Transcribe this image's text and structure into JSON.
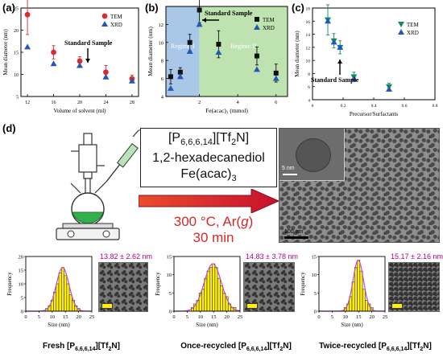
{
  "panels": {
    "a": "(a)",
    "b": "(b)",
    "c": "(c)",
    "d": "(d)"
  },
  "colors": {
    "tem": "#e0282d",
    "xrd": "#2358b8",
    "regime1": "#a9c8e8",
    "regime2": "#bfe3b0",
    "arrow": "#d62828",
    "hist_bar": "#ffef00",
    "fit": "#c24bd0",
    "c_tem": "#0f8a64",
    "c_xrd": "#2358b8"
  },
  "chart_data": [
    {
      "type": "scatter",
      "panel": "a",
      "xlabel": "Volume of solvent (ml)",
      "ylabel": "Mean diameter (nm)",
      "xlim": [
        11,
        29
      ],
      "ylim": [
        5,
        25
      ],
      "xticks": [
        12,
        16,
        20,
        24,
        28
      ],
      "yticks": [
        5,
        10,
        15,
        20,
        25
      ],
      "legend": {
        "position": "top-right",
        "entries": [
          "TEM",
          "XRD"
        ]
      },
      "annotation": "Standard Sample",
      "series": [
        {
          "name": "TEM",
          "marker": "circle",
          "x": [
            12,
            16,
            20,
            24,
            28
          ],
          "y": [
            23.5,
            15.0,
            13.0,
            10.5,
            9.0
          ],
          "err": [
            4.5,
            1.5,
            1.0,
            1.5,
            0.8
          ]
        },
        {
          "name": "XRD",
          "marker": "triangle",
          "x": [
            12,
            16,
            20,
            24,
            28
          ],
          "y": [
            16.2,
            12.4,
            12.0,
            9.4,
            8.5
          ],
          "err": [
            0,
            0,
            0,
            0,
            0
          ]
        }
      ]
    },
    {
      "type": "scatter",
      "panel": "b",
      "xlabel": "Fe(acac)₃ (mmol)",
      "ylabel": "Mean diameter (nm)",
      "xlim": [
        0.25,
        6.6
      ],
      "ylim": [
        4,
        14
      ],
      "xticks": [
        2,
        4,
        6
      ],
      "yticks": [
        4,
        6,
        8,
        10,
        12
      ],
      "legend": {
        "position": "top-right",
        "entries": [
          "TEM",
          "XRD"
        ]
      },
      "regions": [
        {
          "label": "Regime I",
          "from": 0.25,
          "to": 2
        },
        {
          "label": "Regime II",
          "from": 2,
          "to": 6.6
        }
      ],
      "annotation": "Standard Sample",
      "series": [
        {
          "name": "TEM",
          "marker": "square",
          "x": [
            0.5,
            1.0,
            1.5,
            2.0,
            3.0,
            5.0,
            6.0
          ],
          "y": [
            6.2,
            6.7,
            10.0,
            13.6,
            9.8,
            8.5,
            6.6
          ],
          "err": [
            0.8,
            0.5,
            0.9,
            1.4,
            1.5,
            1.0,
            1.0
          ]
        },
        {
          "name": "XRD",
          "marker": "triangle",
          "x": [
            0.5,
            1.0,
            1.5,
            2.0,
            3.0,
            5.0,
            6.0
          ],
          "y": [
            4.9,
            6.2,
            9.0,
            12.0,
            8.9,
            7.0,
            6.0
          ],
          "err": [
            0,
            0,
            0,
            0,
            0,
            0,
            0
          ]
        }
      ]
    },
    {
      "type": "scatter",
      "panel": "c",
      "xlabel": "Precursor/Surfactants",
      "ylabel": "Mean diameter (nm)",
      "xlim": [
        0,
        0.8
      ],
      "ylim": [
        4,
        18
      ],
      "xticks": [
        0.0,
        0.2,
        0.4,
        0.6,
        0.8
      ],
      "yticks": [
        4,
        6,
        8,
        10,
        12,
        14,
        16,
        18
      ],
      "legend": {
        "position": "top-right",
        "entries": [
          "TEM",
          "XRD"
        ]
      },
      "annotation": "Standard Sample",
      "series": [
        {
          "name": "TEM",
          "marker": "triangle-down",
          "x": [
            0.1,
            0.14,
            0.18,
            0.27,
            0.5
          ],
          "y": [
            16.2,
            13.0,
            12.0,
            7.5,
            6.0
          ],
          "err": [
            2.3,
            1.1,
            1.0,
            0.7,
            0.5
          ]
        },
        {
          "name": "XRD",
          "marker": "triangle",
          "x": [
            0.1,
            0.14,
            0.18,
            0.27,
            0.5
          ],
          "y": [
            16.0,
            12.8,
            12.0,
            7.2,
            5.6
          ],
          "err": [
            0,
            0,
            0,
            0,
            0
          ]
        }
      ]
    },
    {
      "type": "bar",
      "panel": "d1",
      "xlabel": "Size (nm)",
      "ylabel": "Frequency",
      "xlim": [
        0,
        25
      ],
      "ylim": [
        0,
        20
      ],
      "xticks": [
        0,
        5,
        10,
        15,
        20,
        25
      ],
      "yticks": [
        0,
        5,
        10,
        15,
        20
      ],
      "fit_label": "13.82 ± 2.62 nm",
      "caption": "Fresh [P6,6,6,14][Tf2N]",
      "categories": [
        8,
        9,
        10,
        11,
        12,
        13,
        14,
        15,
        16,
        17,
        18,
        19,
        20
      ],
      "values": [
        1,
        2,
        4,
        7,
        10,
        14,
        16,
        13,
        10,
        6,
        4,
        2,
        1
      ]
    },
    {
      "type": "bar",
      "panel": "d2",
      "xlabel": "Size (nm)",
      "ylabel": "Frequency",
      "xlim": [
        0,
        25
      ],
      "ylim": [
        0,
        15
      ],
      "xticks": [
        0,
        5,
        10,
        15,
        20,
        25
      ],
      "yticks": [
        0,
        5,
        10,
        15
      ],
      "fit_label": "14.83 ± 3.78 nm",
      "caption": "Once-recycled [P6,6,6,14][Tf2N]",
      "categories": [
        7,
        8,
        9,
        10,
        11,
        12,
        13,
        14,
        15,
        16,
        17,
        18,
        19,
        20,
        21,
        22,
        23
      ],
      "values": [
        1,
        2,
        3,
        5,
        6,
        9,
        11,
        12,
        13,
        12,
        9,
        7,
        5,
        4,
        2,
        1,
        1
      ]
    },
    {
      "type": "bar",
      "panel": "d3",
      "xlabel": "Size (nm)",
      "ylabel": "Frequency",
      "xlim": [
        0,
        25
      ],
      "ylim": [
        0,
        15
      ],
      "xticks": [
        0,
        5,
        10,
        15,
        20,
        25
      ],
      "yticks": [
        0,
        5,
        10,
        15
      ],
      "fit_label": "15.17 ± 2.16 nm",
      "caption": "Twice-recycled [P6,6,6,14][Tf2N]",
      "categories": [
        10,
        11,
        12,
        13,
        14,
        15,
        16,
        17,
        18,
        19,
        20
      ],
      "values": [
        1,
        2,
        4,
        8,
        12,
        14,
        11,
        6,
        3,
        2,
        1
      ]
    }
  ],
  "reaction": {
    "reagent_1": "[P6,6,6,14][Tf2N]",
    "reagent_2": "1,2-hexadecanediol",
    "reagent_3": "Fe(acac)3",
    "conditions_1": "300 °C, Ar(g)",
    "conditions_2": "30 min"
  },
  "tem_image": {
    "scale_small": "5 nm",
    "scale_large": "100 nm"
  }
}
